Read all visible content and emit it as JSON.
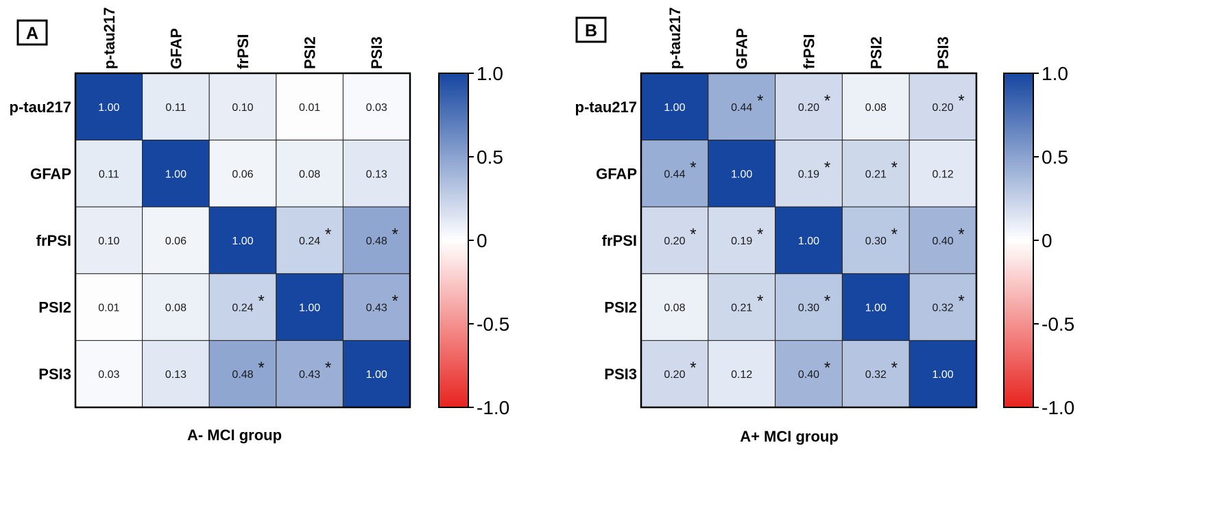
{
  "chart_data": [
    {
      "type": "heatmap",
      "panel_label": "A",
      "title": "A- MCI group",
      "row_labels": [
        "p-tau217",
        "GFAP",
        "frPSI",
        "PSI2",
        "PSI3"
      ],
      "col_labels": [
        "p-tau217",
        "GFAP",
        "frPSI",
        "PSI2",
        "PSI3"
      ],
      "values": [
        [
          1.0,
          0.11,
          0.1,
          0.01,
          0.03
        ],
        [
          0.11,
          1.0,
          0.06,
          0.08,
          0.13
        ],
        [
          0.1,
          0.06,
          1.0,
          0.24,
          0.48
        ],
        [
          0.01,
          0.08,
          0.24,
          1.0,
          0.43
        ],
        [
          0.03,
          0.13,
          0.48,
          0.43,
          1.0
        ]
      ],
      "labels": [
        [
          "1.00",
          "0.11",
          "0.10",
          "0.01",
          "0.03"
        ],
        [
          "0.11",
          "1.00",
          "0.06",
          "0.08",
          "0.13"
        ],
        [
          "0.10",
          "0.06",
          "1.00",
          "0.24",
          "0.48"
        ],
        [
          "0.01",
          "0.08",
          "0.24",
          "1.00",
          "0.43"
        ],
        [
          "0.03",
          "0.13",
          "0.48",
          "0.43",
          "1.00"
        ]
      ],
      "significant": [
        [
          false,
          false,
          false,
          false,
          false
        ],
        [
          false,
          false,
          false,
          false,
          false
        ],
        [
          false,
          false,
          false,
          true,
          true
        ],
        [
          false,
          false,
          true,
          false,
          true
        ],
        [
          false,
          false,
          true,
          true,
          false
        ]
      ],
      "significance_marker": "*",
      "colorbar": {
        "range": [
          -1.0,
          1.0
        ],
        "ticks": [
          "1.0",
          "0.5",
          "0",
          "-0.5",
          "-1.0"
        ],
        "tick_values": [
          1.0,
          0.5,
          0,
          -0.5,
          -1.0
        ],
        "colors": {
          "neg": "#e8231f",
          "zero": "#ffffff",
          "pos": "#1646a0"
        }
      }
    },
    {
      "type": "heatmap",
      "panel_label": "B",
      "title": "A+ MCI group",
      "row_labels": [
        "p-tau217",
        "GFAP",
        "frPSI",
        "PSI2",
        "PSI3"
      ],
      "col_labels": [
        "p-tau217",
        "GFAP",
        "frPSI",
        "PSI2",
        "PSI3"
      ],
      "values": [
        [
          1.0,
          0.44,
          0.2,
          0.08,
          0.2
        ],
        [
          0.44,
          1.0,
          0.19,
          0.21,
          0.12
        ],
        [
          0.2,
          0.19,
          1.0,
          0.3,
          0.4
        ],
        [
          0.08,
          0.21,
          0.3,
          1.0,
          0.32
        ],
        [
          0.2,
          0.12,
          0.4,
          0.32,
          1.0
        ]
      ],
      "labels": [
        [
          "1.00",
          "0.44",
          "0.20",
          "0.08",
          "0.20"
        ],
        [
          "0.44",
          "1.00",
          "0.19",
          "0.21",
          "0.12"
        ],
        [
          "0.20",
          "0.19",
          "1.00",
          "0.30",
          "0.40"
        ],
        [
          "0.08",
          "0.21",
          "0.30",
          "1.00",
          "0.32"
        ],
        [
          "0.20",
          "0.12",
          "0.40",
          "0.32",
          "1.00"
        ]
      ],
      "significant": [
        [
          false,
          true,
          true,
          false,
          true
        ],
        [
          true,
          false,
          true,
          true,
          false
        ],
        [
          true,
          true,
          false,
          true,
          true
        ],
        [
          false,
          true,
          true,
          false,
          true
        ],
        [
          true,
          false,
          true,
          true,
          false
        ]
      ],
      "significance_marker": "*",
      "colorbar": {
        "range": [
          -1.0,
          1.0
        ],
        "ticks": [
          "1.0",
          "0.5",
          "0",
          "-0.5",
          "-1.0"
        ],
        "tick_values": [
          1.0,
          0.5,
          0,
          -0.5,
          -1.0
        ],
        "colors": {
          "neg": "#e8231f",
          "zero": "#ffffff",
          "pos": "#1646a0"
        }
      }
    }
  ]
}
